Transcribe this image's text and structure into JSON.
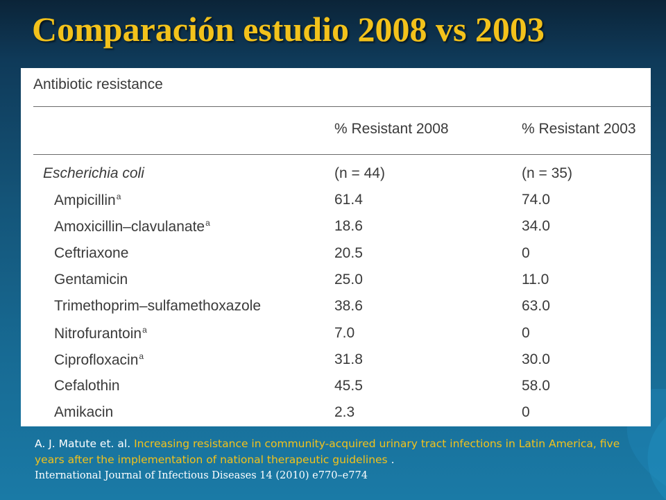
{
  "slide": {
    "title": "Comparación estudio 2008 vs 2003"
  },
  "table": {
    "caption": "Antibiotic resistance",
    "columns": [
      "% Resistant 2008",
      "% Resistant 2003"
    ],
    "group": {
      "name": "Escherichia coli",
      "n_2008": "(n = 44)",
      "n_2003": "(n = 35)"
    },
    "rows": [
      {
        "drug": "Ampicillin",
        "mark": "a",
        "r2008": "61.4",
        "r2003": "74.0"
      },
      {
        "drug": "Amoxicillin–clavulanate",
        "mark": "a",
        "r2008": "18.6",
        "r2003": "34.0"
      },
      {
        "drug": "Ceftriaxone",
        "mark": "",
        "r2008": "20.5",
        "r2003": "0"
      },
      {
        "drug": "Gentamicin",
        "mark": "",
        "r2008": "25.0",
        "r2003": "11.0"
      },
      {
        "drug": "Trimethoprim–sulfamethoxazole",
        "mark": "",
        "r2008": "38.6",
        "r2003": "63.0"
      },
      {
        "drug": "Nitrofurantoin",
        "mark": "a",
        "r2008": "7.0",
        "r2003": "0"
      },
      {
        "drug": "Ciprofloxacin",
        "mark": "a",
        "r2008": "31.8",
        "r2003": "30.0"
      },
      {
        "drug": "Cefalothin",
        "mark": "",
        "r2008": "45.5",
        "r2003": "58.0"
      },
      {
        "drug": "Amikacin",
        "mark": "",
        "r2008": "2.3",
        "r2003": "0"
      }
    ]
  },
  "citation": {
    "authors": "A. J. Matute et. al.",
    "title": "Increasing resistance in community-acquired urinary tract infections in Latin America, five years after the implementation of national therapeutic guidelines",
    "end": ".",
    "journal": "International Journal of Infectious Diseases 14 (2010) e770–e774"
  },
  "colors": {
    "title": "#f3c21b",
    "background": "#176a93",
    "text": "#3a3a3a"
  }
}
